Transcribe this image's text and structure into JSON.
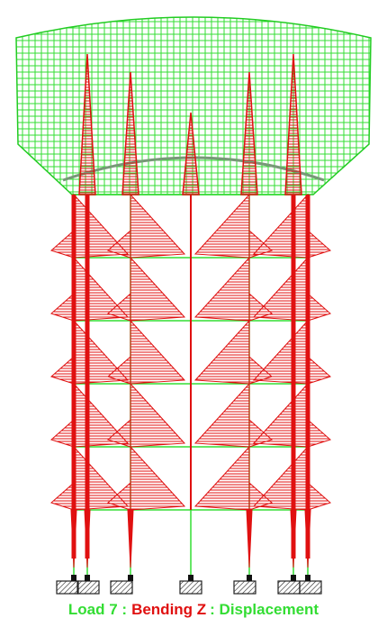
{
  "caption": {
    "load": "Load 7 :",
    "result": "Bending Z",
    "view": ": Displacement"
  }
}
